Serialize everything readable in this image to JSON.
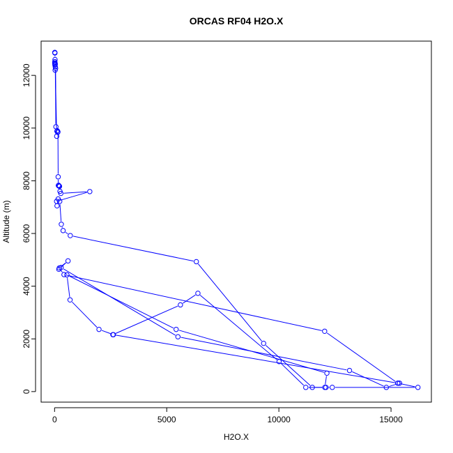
{
  "chart_data": {
    "type": "line",
    "title": "ORCAS RF04 H2O.X",
    "xlabel": "H2O.X",
    "ylabel": "Altitude (m)",
    "xlim": [
      -600,
      16800
    ],
    "ylim": [
      -400,
      13300
    ],
    "xticks": [
      0,
      5000,
      10000,
      15000
    ],
    "yticks": [
      0,
      2000,
      4000,
      6000,
      8000,
      10000,
      12000
    ],
    "grid": false,
    "legend": "none",
    "colors": {
      "series": "#0000ff",
      "axes": "#000000",
      "background": "#ffffff"
    },
    "series": [
      {
        "style": "lines-and-open-circles",
        "x": [
          10,
          15,
          20,
          12,
          8,
          15,
          22,
          30,
          18,
          25,
          45,
          60,
          30,
          95,
          105,
          120,
          140,
          150,
          160,
          170,
          180,
          200,
          220,
          240,
          280,
          1570,
          90,
          110,
          160,
          230,
          300,
          380,
          700,
          6320,
          9320,
          11490,
          12100,
          11200,
          10010,
          6390,
          5610,
          2600,
          15310,
          15380,
          14790,
          13150,
          5500,
          290,
          190,
          600,
          210,
          420,
          12040,
          15300,
          16200,
          12380,
          12050,
          12140,
          5420,
          550,
          690,
          1980,
          2620
        ],
        "y": [
          12870,
          12850,
          12600,
          12520,
          12470,
          12400,
          12410,
          12430,
          12470,
          12200,
          12270,
          10050,
          12330,
          9690,
          9880,
          9900,
          9840,
          9860,
          8150,
          7820,
          7830,
          7800,
          7790,
          7600,
          7520,
          7590,
          7220,
          7050,
          7310,
          7220,
          6350,
          6110,
          5920,
          4930,
          1830,
          160,
          160,
          160,
          1140,
          3730,
          3290,
          2160,
          320,
          320,
          160,
          800,
          2080,
          4710,
          4640,
          4960,
          4690,
          4440,
          2290,
          320,
          160,
          160,
          160,
          700,
          2360,
          4430,
          3480,
          2360,
          2160
        ]
      }
    ]
  }
}
